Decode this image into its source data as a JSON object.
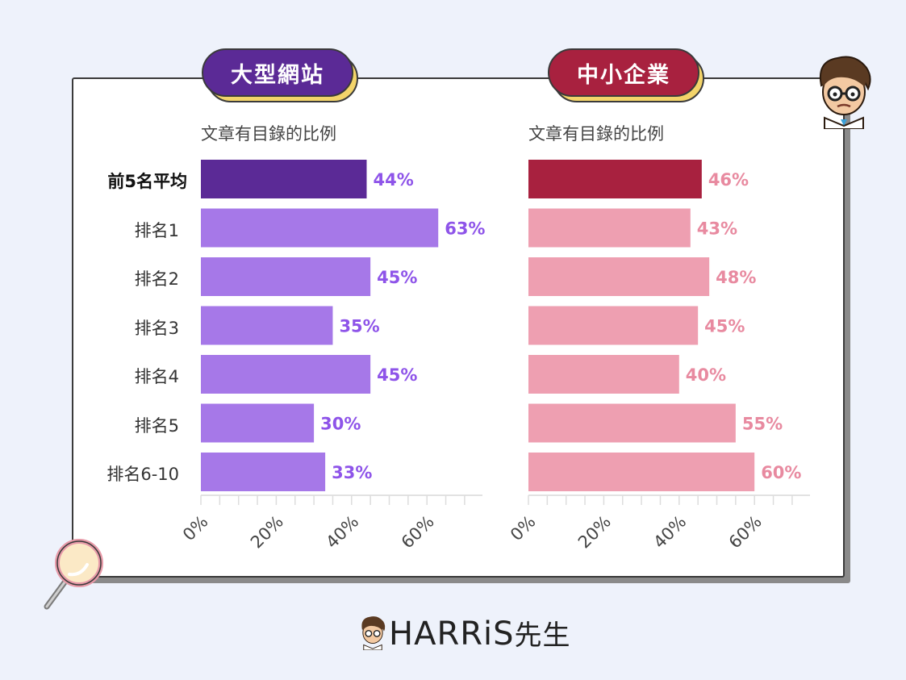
{
  "left_panel": {
    "title": "大型網站",
    "subtitle": "文章有目錄的比例",
    "title_color": "#5b2a96",
    "bar_color_highlight": "#5b2a96",
    "bar_color": "#a678e8",
    "value_color": "#8e54e9"
  },
  "right_panel": {
    "title": "中小企業",
    "subtitle": "文章有目錄的比例",
    "title_color": "#a8213f",
    "bar_color_highlight": "#a8213f",
    "bar_color": "#ee9fb1",
    "value_color": "#e88aa0"
  },
  "row_labels": [
    "前5名平均",
    "排名1",
    "排名2",
    "排名3",
    "排名4",
    "排名5",
    "排名6-10"
  ],
  "brand": {
    "text": "HARRiS",
    "suffix": "先生"
  },
  "chart_data": [
    {
      "type": "bar",
      "orientation": "horizontal",
      "title": "大型網站",
      "subtitle": "文章有目錄的比例",
      "categories": [
        "前5名平均",
        "排名1",
        "排名2",
        "排名3",
        "排名4",
        "排名5",
        "排名6-10"
      ],
      "values": [
        44,
        63,
        45,
        35,
        45,
        30,
        33
      ],
      "value_labels": [
        "44%",
        "63%",
        "45%",
        "35%",
        "45%",
        "30%",
        "33%"
      ],
      "xlim": [
        0,
        75
      ],
      "xticks": [
        "0%",
        "20%",
        "40%",
        "60%"
      ],
      "grid": false
    },
    {
      "type": "bar",
      "orientation": "horizontal",
      "title": "中小企業",
      "subtitle": "文章有目錄的比例",
      "categories": [
        "前5名平均",
        "排名1",
        "排名2",
        "排名3",
        "排名4",
        "排名5",
        "排名6-10"
      ],
      "values": [
        46,
        43,
        48,
        45,
        40,
        55,
        60
      ],
      "value_labels": [
        "46%",
        "43%",
        "48%",
        "45%",
        "40%",
        "55%",
        "60%"
      ],
      "xlim": [
        0,
        75
      ],
      "xticks": [
        "0%",
        "20%",
        "40%",
        "60%"
      ],
      "grid": false
    }
  ]
}
